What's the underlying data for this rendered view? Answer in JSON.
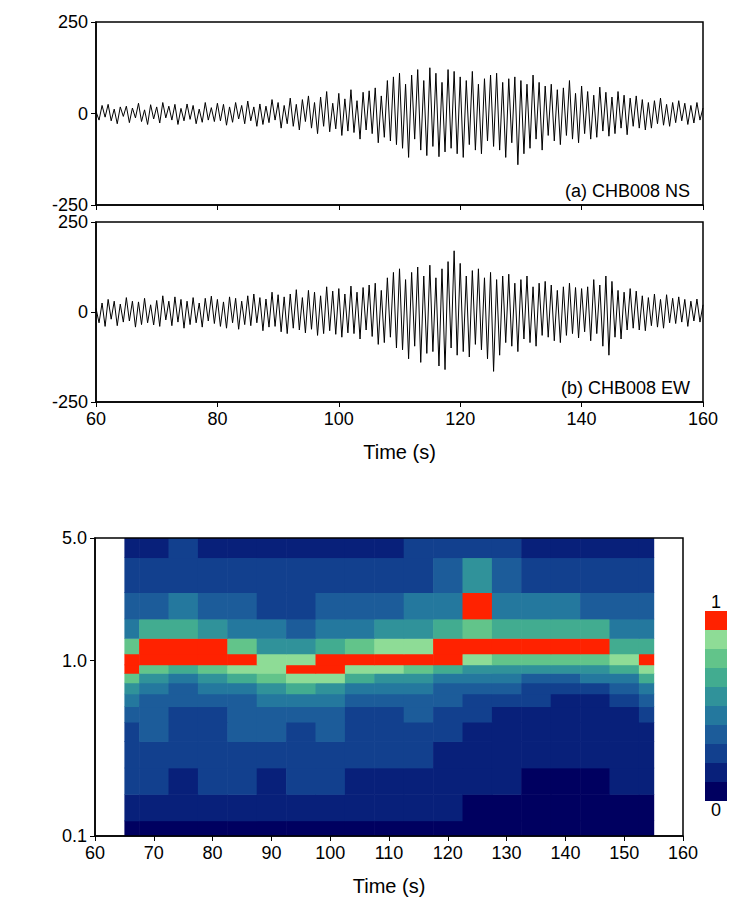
{
  "chart_data": [
    {
      "type": "line",
      "annotation": "(a) CHB008 NS",
      "xlim": [
        60,
        160
      ],
      "xticks": [
        60,
        80,
        100,
        120,
        140,
        160
      ],
      "ylim": [
        -250,
        250
      ],
      "yticks": [
        -250,
        0,
        250
      ],
      "tick_labels": "y",
      "x": [
        60,
        60.5,
        61,
        61.5,
        62,
        62.5,
        63,
        63.5,
        64,
        64.5,
        65,
        65.5,
        66,
        66.5,
        67,
        67.5,
        68,
        68.5,
        69,
        69.5,
        70,
        70.5,
        71,
        71.5,
        72,
        72.5,
        73,
        73.5,
        74,
        74.5,
        75,
        75.5,
        76,
        76.5,
        77,
        77.5,
        78,
        78.5,
        79,
        79.5,
        80,
        80.5,
        81,
        81.5,
        82,
        82.5,
        83,
        83.5,
        84,
        84.5,
        85,
        85.5,
        86,
        86.5,
        87,
        87.5,
        88,
        88.5,
        89,
        89.5,
        90,
        90.5,
        91,
        91.5,
        92,
        92.5,
        93,
        93.5,
        94,
        94.5,
        95,
        95.5,
        96,
        96.5,
        97,
        97.5,
        98,
        98.5,
        99,
        99.5,
        100,
        100.5,
        101,
        101.5,
        102,
        102.5,
        103,
        103.5,
        104,
        104.5,
        105,
        105.5,
        106,
        106.5,
        107,
        107.5,
        108,
        108.5,
        109,
        109.5,
        110,
        110.5,
        111,
        111.5,
        112,
        112.5,
        113,
        113.5,
        114,
        114.5,
        115,
        115.5,
        116,
        116.5,
        117,
        117.5,
        118,
        118.5,
        119,
        119.5,
        120,
        120.5,
        121,
        121.5,
        122,
        122.5,
        123,
        123.5,
        124,
        124.5,
        125,
        125.5,
        126,
        126.5,
        127,
        127.5,
        128,
        128.5,
        129,
        129.5,
        130,
        130.5,
        131,
        131.5,
        132,
        132.5,
        133,
        133.5,
        134,
        134.5,
        135,
        135.5,
        136,
        136.5,
        137,
        137.5,
        138,
        138.5,
        139,
        139.5,
        140,
        140.5,
        141,
        141.5,
        142,
        142.5,
        143,
        143.5,
        144,
        144.5,
        145,
        145.5,
        146,
        146.5,
        147,
        147.5,
        148,
        148.5,
        149,
        149.5,
        150,
        150.5,
        151,
        151.5,
        152,
        152.5,
        153,
        153.5,
        154,
        154.5,
        155,
        155.5,
        156,
        156.5,
        157,
        157.5,
        158,
        158.5,
        159,
        159.5,
        160
      ],
      "series": [
        {
          "color": "#000000",
          "values": [
            5,
            -18,
            22,
            -10,
            25,
            -20,
            12,
            -28,
            18,
            -8,
            20,
            -25,
            15,
            -12,
            28,
            -22,
            10,
            -30,
            24,
            -15,
            18,
            -26,
            30,
            -12,
            20,
            -18,
            25,
            -30,
            14,
            -20,
            26,
            -16,
            22,
            -28,
            12,
            -24,
            30,
            -18,
            16,
            -22,
            28,
            -20,
            25,
            -32,
            18,
            -24,
            30,
            -15,
            22,
            -28,
            34,
            -20,
            18,
            -35,
            26,
            -30,
            20,
            -25,
            38,
            -18,
            30,
            -40,
            22,
            -28,
            42,
            -35,
            25,
            -45,
            38,
            -22,
            48,
            -40,
            30,
            -55,
            45,
            -35,
            60,
            -50,
            28,
            -42,
            55,
            -60,
            40,
            -48,
            65,
            -52,
            35,
            -70,
            58,
            -45,
            62,
            -55,
            70,
            -80,
            48,
            -65,
            90,
            -75,
            100,
            -85,
            110,
            -95,
            80,
            -120,
            105,
            -70,
            120,
            -100,
            90,
            -115,
            125,
            -90,
            110,
            -118,
            85,
            -105,
            120,
            -95,
            115,
            -110,
            100,
            -120,
            90,
            -85,
            115,
            -100,
            80,
            -110,
            95,
            -75,
            105,
            -90,
            110,
            -100,
            85,
            -120,
            95,
            -80,
            100,
            -140,
            90,
            -110,
            80,
            -95,
            105,
            -70,
            85,
            -100,
            75,
            -60,
            80,
            -75,
            65,
            -85,
            70,
            -60,
            90,
            -70,
            55,
            -80,
            75,
            -55,
            60,
            -70,
            50,
            -65,
            72,
            -48,
            58,
            -62,
            45,
            -55,
            60,
            -40,
            50,
            -58,
            42,
            -35,
            48,
            -40,
            38,
            -45,
            30,
            -40,
            35,
            -28,
            42,
            -32,
            25,
            -35,
            30,
            -25,
            35,
            -20,
            28,
            -30,
            22,
            -26,
            30,
            -18,
            15
          ]
        }
      ]
    },
    {
      "type": "line",
      "annotation": "(b) CHB008 EW",
      "xlabel": "Time (s)",
      "xlim": [
        60,
        160
      ],
      "xticks": [
        60,
        80,
        100,
        120,
        140,
        160
      ],
      "ylim": [
        -250,
        250
      ],
      "yticks": [
        -250,
        0,
        250
      ],
      "tick_labels": true,
      "x": [
        60,
        60.5,
        61,
        61.5,
        62,
        62.5,
        63,
        63.5,
        64,
        64.5,
        65,
        65.5,
        66,
        66.5,
        67,
        67.5,
        68,
        68.5,
        69,
        69.5,
        70,
        70.5,
        71,
        71.5,
        72,
        72.5,
        73,
        73.5,
        74,
        74.5,
        75,
        75.5,
        76,
        76.5,
        77,
        77.5,
        78,
        78.5,
        79,
        79.5,
        80,
        80.5,
        81,
        81.5,
        82,
        82.5,
        83,
        83.5,
        84,
        84.5,
        85,
        85.5,
        86,
        86.5,
        87,
        87.5,
        88,
        88.5,
        89,
        89.5,
        90,
        90.5,
        91,
        91.5,
        92,
        92.5,
        93,
        93.5,
        94,
        94.5,
        95,
        95.5,
        96,
        96.5,
        97,
        97.5,
        98,
        98.5,
        99,
        99.5,
        100,
        100.5,
        101,
        101.5,
        102,
        102.5,
        103,
        103.5,
        104,
        104.5,
        105,
        105.5,
        106,
        106.5,
        107,
        107.5,
        108,
        108.5,
        109,
        109.5,
        110,
        110.5,
        111,
        111.5,
        112,
        112.5,
        113,
        113.5,
        114,
        114.5,
        115,
        115.5,
        116,
        116.5,
        117,
        117.5,
        118,
        118.5,
        119,
        119.5,
        120,
        120.5,
        121,
        121.5,
        122,
        122.5,
        123,
        123.5,
        124,
        124.5,
        125,
        125.5,
        126,
        126.5,
        127,
        127.5,
        128,
        128.5,
        129,
        129.5,
        130,
        130.5,
        131,
        131.5,
        132,
        132.5,
        133,
        133.5,
        134,
        134.5,
        135,
        135.5,
        136,
        136.5,
        137,
        137.5,
        138,
        138.5,
        139,
        139.5,
        140,
        140.5,
        141,
        141.5,
        142,
        142.5,
        143,
        143.5,
        144,
        144.5,
        145,
        145.5,
        146,
        146.5,
        147,
        147.5,
        148,
        148.5,
        149,
        149.5,
        150,
        150.5,
        151,
        151.5,
        152,
        152.5,
        153,
        153.5,
        154,
        154.5,
        155,
        155.5,
        156,
        156.5,
        157,
        157.5,
        158,
        158.5,
        159,
        159.5,
        160
      ],
      "series": [
        {
          "color": "#000000",
          "values": [
            10,
            -30,
            25,
            -40,
            35,
            -20,
            30,
            -38,
            22,
            -28,
            40,
            -25,
            30,
            -42,
            28,
            -35,
            38,
            -30,
            20,
            -36,
            32,
            -40,
            45,
            -22,
            30,
            -38,
            42,
            -28,
            35,
            -45,
            30,
            -35,
            40,
            -30,
            25,
            -42,
            38,
            -25,
            44,
            -32,
            35,
            -40,
            28,
            -45,
            42,
            -30,
            38,
            -48,
            30,
            -35,
            45,
            -38,
            50,
            -30,
            40,
            -52,
            36,
            -42,
            55,
            -40,
            48,
            -55,
            42,
            -60,
            50,
            -45,
            62,
            -50,
            40,
            -58,
            60,
            -48,
            55,
            -65,
            45,
            -60,
            70,
            -52,
            58,
            -62,
            65,
            -70,
            50,
            -58,
            72,
            -60,
            55,
            -75,
            68,
            -50,
            75,
            -68,
            80,
            -90,
            60,
            -85,
            95,
            -70,
            110,
            -100,
            120,
            -105,
            90,
            -130,
            110,
            -95,
            125,
            -140,
            100,
            -115,
            130,
            -110,
            95,
            -150,
            120,
            -160,
            140,
            -100,
            170,
            -120,
            135,
            -110,
            100,
            -125,
            115,
            -90,
            120,
            -105,
            95,
            -130,
            110,
            -165,
            90,
            -120,
            100,
            -85,
            105,
            -95,
            80,
            -110,
            90,
            -75,
            100,
            -85,
            70,
            -95,
            80,
            -65,
            85,
            -70,
            75,
            -80,
            60,
            -85,
            70,
            -65,
            80,
            -60,
            68,
            -72,
            65,
            -55,
            70,
            -80,
            90,
            -60,
            75,
            -95,
            100,
            -120,
            85,
            -70,
            60,
            -75,
            55,
            -50,
            65,
            -45,
            58,
            -50,
            45,
            -52,
            40,
            -38,
            50,
            -42,
            35,
            -45,
            48,
            -30,
            38,
            -32,
            42,
            -28,
            35,
            -40,
            30,
            -25,
            36,
            -28,
            20
          ]
        }
      ]
    },
    {
      "type": "heatmap",
      "xlabel": "Time (s)",
      "log": "y",
      "xlim": [
        60,
        160
      ],
      "xticks": [
        60,
        70,
        80,
        90,
        100,
        110,
        120,
        130,
        140,
        150,
        160
      ],
      "ylim": [
        0.1,
        5.0
      ],
      "yticks": [
        0.1,
        {
          "value": 1.0,
          "label": "1.0"
        },
        {
          "value": 5.0,
          "label": "5.0"
        }
      ],
      "times": [
        65,
        70,
        75,
        80,
        85,
        90,
        95,
        100,
        105,
        110,
        115,
        120,
        125,
        130,
        135,
        140,
        145,
        150,
        155
      ],
      "frequencies": [
        0.1,
        0.15,
        0.2,
        0.3,
        0.4,
        0.5,
        0.6,
        0.7,
        0.8,
        0.9,
        1.0,
        1.2,
        1.5,
        2.0,
        3.0,
        5.0
      ],
      "cells": [
        [
          0.08,
          0.06,
          0.06,
          0.05,
          0.05,
          0.06,
          0.07,
          0.06,
          0.05,
          0.05,
          0.05,
          0.06,
          0.07,
          0.06,
          0.05,
          0.05,
          0.05,
          0.05,
          0.06
        ],
        [
          0.15,
          0.14,
          0.12,
          0.15,
          0.18,
          0.16,
          0.14,
          0.12,
          0.15,
          0.17,
          0.14,
          0.12,
          0.1,
          0.1,
          0.09,
          0.08,
          0.08,
          0.09,
          0.1
        ],
        [
          0.22,
          0.25,
          0.2,
          0.24,
          0.28,
          0.2,
          0.22,
          0.26,
          0.2,
          0.18,
          0.2,
          0.15,
          0.12,
          0.12,
          0.1,
          0.1,
          0.1,
          0.12,
          0.15
        ],
        [
          0.25,
          0.3,
          0.28,
          0.25,
          0.3,
          0.28,
          0.25,
          0.3,
          0.28,
          0.25,
          0.22,
          0.18,
          0.15,
          0.14,
          0.12,
          0.12,
          0.12,
          0.14,
          0.18
        ],
        [
          0.3,
          0.32,
          0.3,
          0.28,
          0.32,
          0.35,
          0.3,
          0.32,
          0.3,
          0.28,
          0.3,
          0.25,
          0.2,
          0.18,
          0.15,
          0.14,
          0.14,
          0.16,
          0.2
        ],
        [
          0.35,
          0.35,
          0.3,
          0.3,
          0.32,
          0.38,
          0.35,
          0.32,
          0.3,
          0.3,
          0.32,
          0.28,
          0.22,
          0.2,
          0.18,
          0.16,
          0.16,
          0.2,
          0.25
        ],
        [
          0.42,
          0.38,
          0.35,
          0.35,
          0.38,
          0.45,
          0.48,
          0.45,
          0.38,
          0.35,
          0.35,
          0.32,
          0.28,
          0.25,
          0.22,
          0.2,
          0.2,
          0.25,
          0.32
        ],
        [
          0.55,
          0.45,
          0.4,
          0.42,
          0.48,
          0.58,
          0.65,
          0.6,
          0.5,
          0.45,
          0.42,
          0.4,
          0.35,
          0.32,
          0.3,
          0.28,
          0.3,
          0.35,
          0.45
        ],
        [
          0.75,
          0.55,
          0.5,
          0.55,
          0.62,
          0.75,
          0.88,
          0.82,
          0.68,
          0.6,
          0.55,
          0.5,
          0.45,
          0.42,
          0.4,
          0.4,
          0.42,
          0.5,
          0.62
        ],
        [
          0.95,
          0.75,
          0.68,
          0.75,
          0.85,
          0.88,
          0.97,
          0.95,
          0.88,
          0.82,
          0.75,
          0.68,
          0.6,
          0.58,
          0.55,
          0.55,
          0.58,
          0.7,
          0.85
        ],
        [
          0.98,
          0.95,
          0.92,
          0.92,
          0.96,
          0.82,
          0.85,
          0.92,
          0.96,
          0.97,
          0.95,
          0.92,
          0.8,
          0.75,
          0.72,
          0.72,
          0.75,
          0.82,
          0.92
        ],
        [
          0.75,
          0.96,
          0.98,
          0.95,
          0.75,
          0.6,
          0.55,
          0.65,
          0.75,
          0.8,
          0.88,
          0.95,
          0.96,
          0.97,
          0.96,
          0.97,
          0.96,
          0.7,
          0.65
        ],
        [
          0.5,
          0.65,
          0.7,
          0.6,
          0.5,
          0.42,
          0.4,
          0.45,
          0.5,
          0.55,
          0.6,
          0.68,
          0.72,
          0.7,
          0.68,
          0.7,
          0.68,
          0.5,
          0.45
        ],
        [
          0.35,
          0.4,
          0.45,
          0.4,
          0.35,
          0.3,
          0.3,
          0.32,
          0.35,
          0.38,
          0.42,
          0.5,
          0.96,
          0.5,
          0.42,
          0.42,
          0.4,
          0.35,
          0.32
        ],
        [
          0.25,
          0.28,
          0.3,
          0.28,
          0.25,
          0.22,
          0.22,
          0.24,
          0.26,
          0.28,
          0.3,
          0.35,
          0.55,
          0.32,
          0.28,
          0.28,
          0.26,
          0.24,
          0.22
        ],
        [
          0.18,
          0.2,
          0.22,
          0.2,
          0.18,
          0.16,
          0.16,
          0.18,
          0.2,
          0.2,
          0.22,
          0.24,
          0.3,
          0.22,
          0.2,
          0.2,
          0.18,
          0.16,
          0.15
        ]
      ],
      "colorbar": {
        "range": [
          0,
          1
        ],
        "ticks": [
          0,
          1
        ]
      }
    }
  ]
}
